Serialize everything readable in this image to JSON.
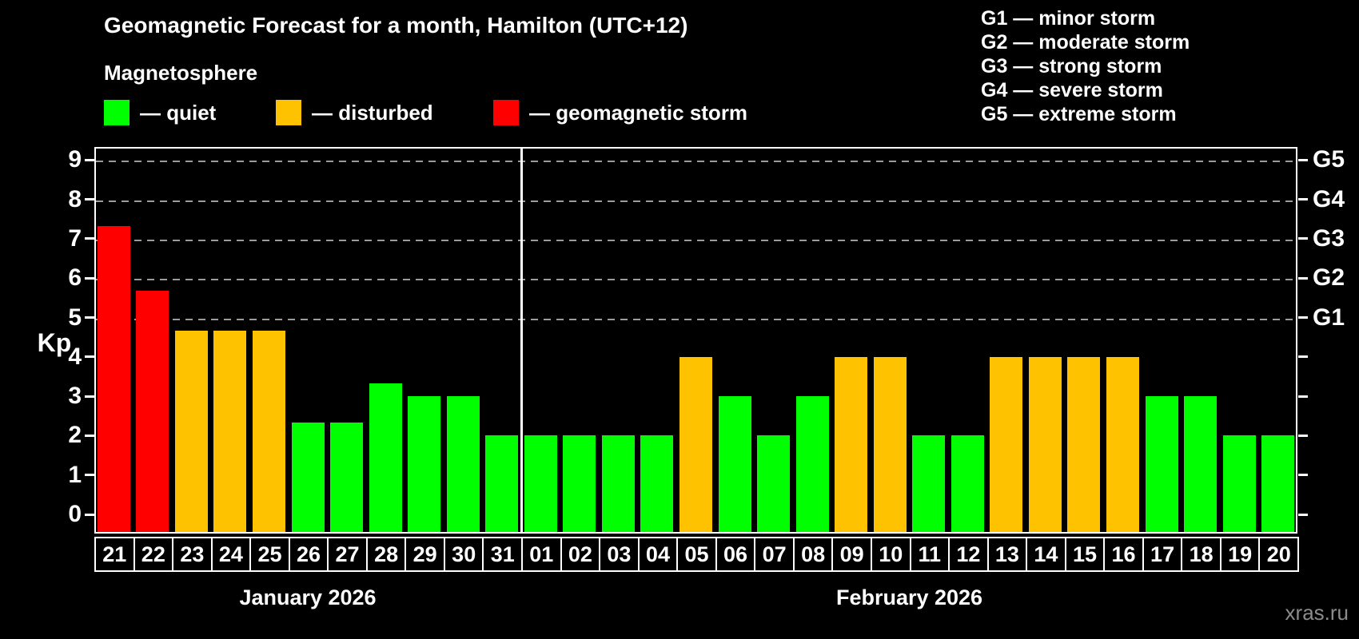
{
  "header": {
    "title": "Geomagnetic Forecast for a month, Hamilton (UTC+12)",
    "legend_title": "Magnetosphere",
    "legend": [
      {
        "key": "quiet",
        "label": "— quiet"
      },
      {
        "key": "disturbed",
        "label": "— disturbed"
      },
      {
        "key": "storm",
        "label": "— geomagnetic storm"
      }
    ],
    "g_scale": [
      "G1 — minor storm",
      "G2 — moderate storm",
      "G3 — strong storm",
      "G4 — severe storm",
      "G5 — extreme storm"
    ]
  },
  "colors": {
    "quiet": "#00ff00",
    "disturbed": "#ffc200",
    "storm": "#ff0000",
    "grid": "#9c9c9c",
    "frame": "#ffffff",
    "watermark": "#8c8c8c"
  },
  "axis": {
    "ylabel": "Kp",
    "yticks": [
      0,
      1,
      2,
      3,
      4,
      5,
      6,
      7,
      8,
      9
    ],
    "g_labels": [
      {
        "kp": 5,
        "label": "G1"
      },
      {
        "kp": 6,
        "label": "G2"
      },
      {
        "kp": 7,
        "label": "G3"
      },
      {
        "kp": 8,
        "label": "G4"
      },
      {
        "kp": 9,
        "label": "G5"
      }
    ]
  },
  "months": [
    {
      "label": "January 2026",
      "days": 11
    },
    {
      "label": "February 2026",
      "days": 20
    }
  ],
  "watermark": "xras.ru",
  "chart_data": {
    "type": "bar",
    "title": "Geomagnetic Forecast for a month, Hamilton (UTC+12)",
    "xlabel": "",
    "ylabel": "Kp",
    "ylim": [
      0,
      9
    ],
    "yticks": [
      0,
      1,
      2,
      3,
      4,
      5,
      6,
      7,
      8,
      9
    ],
    "gridlines_at": [
      5,
      6,
      7,
      8,
      9
    ],
    "right_axis_labels": [
      "G1",
      "G2",
      "G3",
      "G4",
      "G5"
    ],
    "legend_position": "top",
    "status_meaning": {
      "quiet": "green",
      "disturbed": "orange",
      "storm": "red"
    },
    "bars": [
      {
        "month": "Jan",
        "day": "21",
        "kp": 7.33,
        "status": "storm"
      },
      {
        "month": "Jan",
        "day": "22",
        "kp": 5.67,
        "status": "storm"
      },
      {
        "month": "Jan",
        "day": "23",
        "kp": 4.67,
        "status": "disturbed"
      },
      {
        "month": "Jan",
        "day": "24",
        "kp": 4.67,
        "status": "disturbed"
      },
      {
        "month": "Jan",
        "day": "25",
        "kp": 4.67,
        "status": "disturbed"
      },
      {
        "month": "Jan",
        "day": "26",
        "kp": 2.33,
        "status": "quiet"
      },
      {
        "month": "Jan",
        "day": "27",
        "kp": 2.33,
        "status": "quiet"
      },
      {
        "month": "Jan",
        "day": "28",
        "kp": 3.33,
        "status": "quiet"
      },
      {
        "month": "Jan",
        "day": "29",
        "kp": 3,
        "status": "quiet"
      },
      {
        "month": "Jan",
        "day": "30",
        "kp": 3,
        "status": "quiet"
      },
      {
        "month": "Jan",
        "day": "31",
        "kp": 2,
        "status": "quiet"
      },
      {
        "month": "Feb",
        "day": "01",
        "kp": 2,
        "status": "quiet"
      },
      {
        "month": "Feb",
        "day": "02",
        "kp": 2,
        "status": "quiet"
      },
      {
        "month": "Feb",
        "day": "03",
        "kp": 2,
        "status": "quiet"
      },
      {
        "month": "Feb",
        "day": "04",
        "kp": 2,
        "status": "quiet"
      },
      {
        "month": "Feb",
        "day": "05",
        "kp": 4,
        "status": "disturbed"
      },
      {
        "month": "Feb",
        "day": "06",
        "kp": 3,
        "status": "quiet"
      },
      {
        "month": "Feb",
        "day": "07",
        "kp": 2,
        "status": "quiet"
      },
      {
        "month": "Feb",
        "day": "08",
        "kp": 3,
        "status": "quiet"
      },
      {
        "month": "Feb",
        "day": "09",
        "kp": 4,
        "status": "disturbed"
      },
      {
        "month": "Feb",
        "day": "10",
        "kp": 4,
        "status": "disturbed"
      },
      {
        "month": "Feb",
        "day": "11",
        "kp": 2,
        "status": "quiet"
      },
      {
        "month": "Feb",
        "day": "12",
        "kp": 2,
        "status": "quiet"
      },
      {
        "month": "Feb",
        "day": "13",
        "kp": 4,
        "status": "disturbed"
      },
      {
        "month": "Feb",
        "day": "14",
        "kp": 4,
        "status": "disturbed"
      },
      {
        "month": "Feb",
        "day": "15",
        "kp": 4,
        "status": "disturbed"
      },
      {
        "month": "Feb",
        "day": "16",
        "kp": 4,
        "status": "disturbed"
      },
      {
        "month": "Feb",
        "day": "17",
        "kp": 3,
        "status": "quiet"
      },
      {
        "month": "Feb",
        "day": "18",
        "kp": 3,
        "status": "quiet"
      },
      {
        "month": "Feb",
        "day": "19",
        "kp": 2,
        "status": "quiet"
      },
      {
        "month": "Feb",
        "day": "20",
        "kp": 2,
        "status": "quiet"
      }
    ]
  }
}
